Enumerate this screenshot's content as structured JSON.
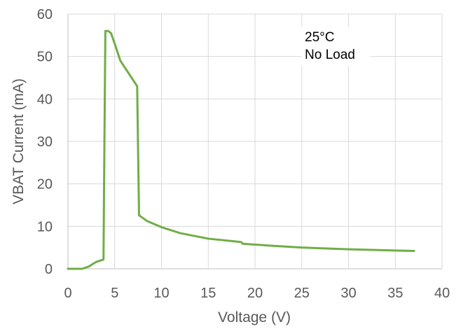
{
  "chart_data": {
    "type": "line",
    "title": "",
    "xlabel": "Voltage (V)",
    "ylabel": "VBAT Current (mA)",
    "xlim": [
      0,
      40
    ],
    "ylim": [
      0,
      60
    ],
    "x_ticks": [
      0,
      5,
      10,
      15,
      20,
      25,
      30,
      35,
      40
    ],
    "y_ticks": [
      0,
      10,
      20,
      30,
      40,
      50,
      60
    ],
    "grid": true,
    "legend": "none",
    "annotations": [
      "25°C",
      "No Load"
    ],
    "series": [
      {
        "color": "#70ad47",
        "x": [
          0,
          1.5,
          2.2,
          3.0,
          3.8,
          3.9,
          4.0,
          4.3,
          4.6,
          5.0,
          5.6,
          6.5,
          7.4,
          7.45,
          7.6,
          8.5,
          10,
          12,
          15,
          18.5,
          18.7,
          22,
          25,
          30,
          35,
          37
        ],
        "y": [
          0,
          0,
          0.5,
          1.6,
          2.2,
          30,
          56,
          56,
          55.5,
          53,
          49,
          46,
          43,
          35,
          12.6,
          11.2,
          9.8,
          8.4,
          7.1,
          6.3,
          5.9,
          5.4,
          5.0,
          4.6,
          4.3,
          4.2
        ]
      }
    ]
  }
}
